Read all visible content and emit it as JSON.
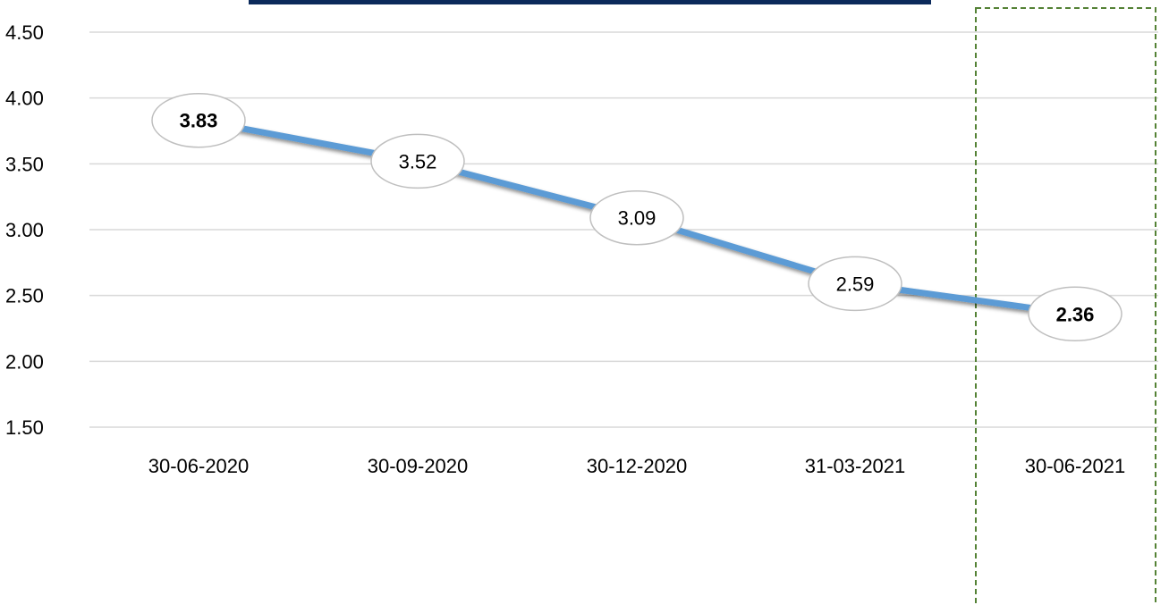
{
  "chart_data": {
    "type": "line",
    "title": "",
    "xlabel": "",
    "ylabel": "",
    "categories": [
      "30-06-2020",
      "30-09-2020",
      "30-12-2020",
      "31-03-2021",
      "30-06-2021"
    ],
    "series": [
      {
        "values": [
          3.83,
          3.52,
          3.09,
          2.59,
          2.36
        ],
        "labels": [
          "3.83",
          "3.52",
          "3.09",
          "2.59",
          "2.36"
        ],
        "bold_labels": [
          true,
          false,
          false,
          false,
          true
        ],
        "color": "#5b9bd5"
      }
    ],
    "ylim": [
      1.5,
      4.5
    ],
    "y_ticks": [
      "1.50",
      "2.00",
      "2.50",
      "3.00",
      "3.50",
      "4.00",
      "4.50"
    ],
    "y_tick_values": [
      1.5,
      2.0,
      2.5,
      3.0,
      3.5,
      4.0,
      4.5
    ],
    "grid": true,
    "legend": "none",
    "highlighted_category": "30-06-2021",
    "colors": {
      "title_bar": "#0b2a5b",
      "gridline": "#d9d9d9",
      "highlight_border": "#548235",
      "label_border": "#bfbfbf"
    }
  }
}
